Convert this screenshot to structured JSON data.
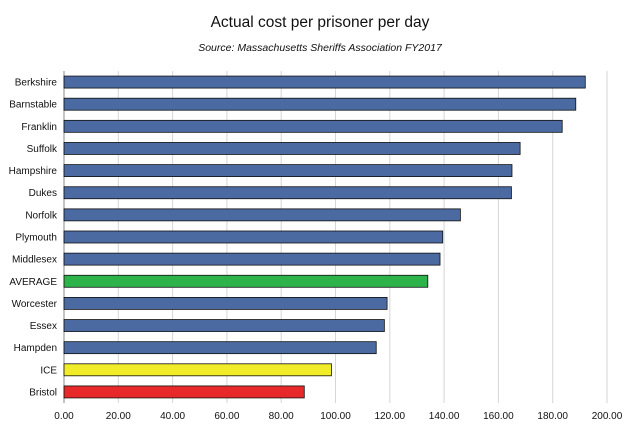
{
  "chart_data": {
    "type": "bar",
    "orientation": "horizontal",
    "title": "Actual cost per prisoner per day",
    "subtitle": "Source: Massachusetts Sheriffs Association FY2017",
    "categories": [
      "Berkshire",
      "Barnstable",
      "Franklin",
      "Suffolk",
      "Hampshire",
      "Dukes",
      "Norfolk",
      "Plymouth",
      "Middlesex",
      "AVERAGE",
      "Worcester",
      "Essex",
      "Hampden",
      "ICE",
      "Bristol"
    ],
    "values": [
      192.0,
      188.5,
      183.5,
      168.0,
      165.0,
      164.8,
      146.0,
      139.5,
      138.5,
      134.0,
      119.0,
      118.0,
      115.0,
      98.5,
      88.5
    ],
    "colors": [
      "#4a6aa1",
      "#4a6aa1",
      "#4a6aa1",
      "#4a6aa1",
      "#4a6aa1",
      "#4a6aa1",
      "#4a6aa1",
      "#4a6aa1",
      "#4a6aa1",
      "#2db34a",
      "#4a6aa1",
      "#4a6aa1",
      "#4a6aa1",
      "#f1ec2a",
      "#e8292a"
    ],
    "xlim": [
      0,
      200
    ],
    "xticks": [
      "0.00",
      "20.00",
      "40.00",
      "60.00",
      "80.00",
      "100.00",
      "120.00",
      "140.00",
      "160.00",
      "180.00",
      "200.00"
    ],
    "grid": "vertical",
    "legend": "none"
  }
}
